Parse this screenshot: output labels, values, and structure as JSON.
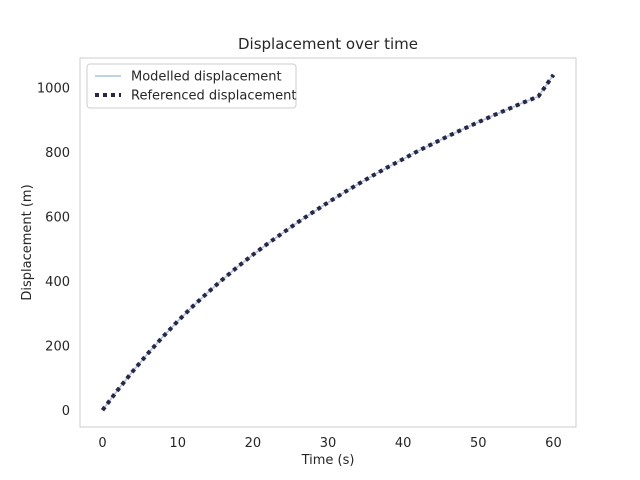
{
  "chart_data": {
    "type": "line",
    "title": "Displacement over time",
    "xlabel": "Time (s)",
    "ylabel": "Displacement (m)",
    "xlim": [
      -3,
      63
    ],
    "ylim": [
      -52,
      1092
    ],
    "xticks": [
      0,
      10,
      20,
      30,
      40,
      50,
      60
    ],
    "yticks": [
      0,
      200,
      400,
      600,
      800,
      1000
    ],
    "grid": false,
    "legend_position": "top-left",
    "series": [
      {
        "name": "Modelled displacement",
        "color": "#a6c3e1",
        "style": "solid",
        "x": [
          0,
          2,
          4,
          6,
          8,
          10,
          12,
          14,
          16,
          18,
          20,
          22,
          24,
          26,
          28,
          30,
          32,
          34,
          36,
          38,
          40,
          42,
          44,
          46,
          48,
          50,
          52,
          54,
          56,
          58,
          60
        ],
        "y": [
          0,
          62,
          120,
          175,
          227,
          276,
          322,
          365,
          406,
          445,
          482,
          517,
          550,
          583,
          614,
          644,
          673,
          701,
          728,
          754,
          779,
          804,
          827,
          850,
          872,
          893,
          914,
          934,
          954,
          973,
          1040
        ]
      },
      {
        "name": "Referenced displacement",
        "color": "#2b2645",
        "style": "dotted",
        "x": [
          0,
          2,
          4,
          6,
          8,
          10,
          12,
          14,
          16,
          18,
          20,
          22,
          24,
          26,
          28,
          30,
          32,
          34,
          36,
          38,
          40,
          42,
          44,
          46,
          48,
          50,
          52,
          54,
          56,
          58,
          60
        ],
        "y": [
          0,
          62,
          120,
          175,
          227,
          276,
          322,
          365,
          406,
          445,
          482,
          517,
          550,
          583,
          614,
          644,
          673,
          701,
          728,
          754,
          779,
          804,
          827,
          850,
          872,
          893,
          914,
          934,
          954,
          973,
          1040
        ]
      }
    ]
  }
}
